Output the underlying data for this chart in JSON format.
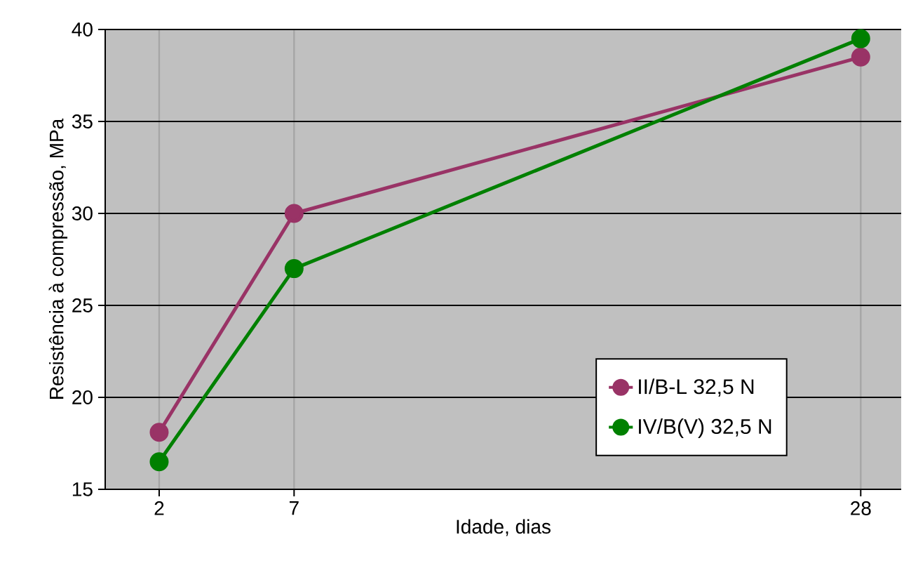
{
  "chart_data": {
    "type": "line",
    "xlabel": "Idade, dias",
    "ylabel": "Resistência à compressão, MPa",
    "x": [
      2,
      7,
      28
    ],
    "series": [
      {
        "name": "II/B-L 32,5 N",
        "color": "#993366",
        "values": [
          18.1,
          30,
          38.5
        ]
      },
      {
        "name": "IV/B(V) 32,5 N",
        "color": "#008000",
        "values": [
          16.5,
          27,
          39.5
        ]
      }
    ],
    "xlim": [
      0,
      29.5
    ],
    "xticks": [
      2,
      7,
      28
    ],
    "ylim": [
      15,
      40
    ],
    "yticks": [
      15,
      20,
      25,
      30,
      35,
      40
    ],
    "grid": true,
    "legend": "bottom right",
    "marker": "circle",
    "line_style": "solid"
  }
}
